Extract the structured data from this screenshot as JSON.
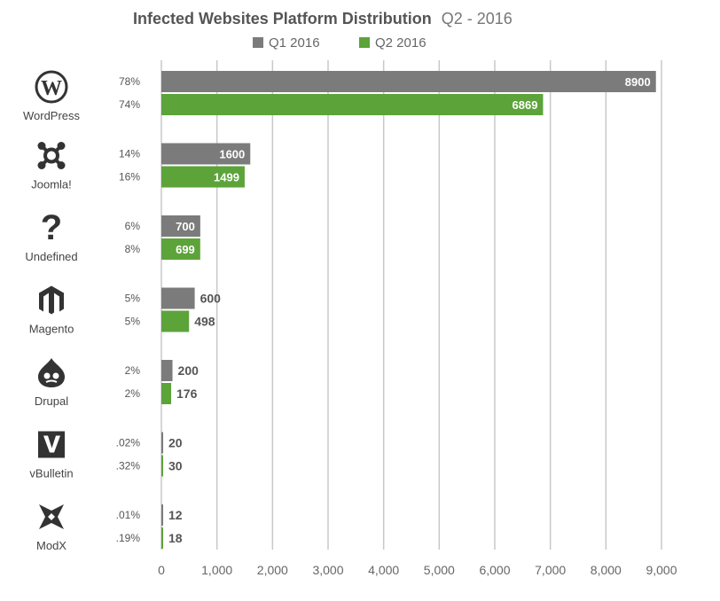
{
  "chart_data": {
    "type": "bar",
    "orientation": "horizontal",
    "title": "Infected Websites Platform Distribution",
    "subtitle": "Q2 - 2016",
    "categories": [
      "WordPress",
      "Joomla!",
      "Undefined",
      "Magento",
      "Drupal",
      "vBulletin",
      "ModX"
    ],
    "icons": [
      "wordpress-icon",
      "joomla-icon",
      "question-mark-icon",
      "magento-icon",
      "drupal-icon",
      "vbulletin-icon",
      "modx-icon"
    ],
    "series": [
      {
        "name": "Q1 2016",
        "color": "#7b7b7b",
        "values": [
          8900,
          1600,
          700,
          600,
          200,
          20,
          12
        ],
        "percent_labels": [
          "78%",
          "14%",
          "6%",
          "5%",
          "2%",
          ".02%",
          ".01%"
        ]
      },
      {
        "name": "Q2 2016",
        "color": "#5ca33a",
        "values": [
          6869,
          1499,
          699,
          498,
          176,
          30,
          18
        ],
        "percent_labels": [
          "74%",
          "16%",
          "8%",
          "5%",
          "2%",
          ".32%",
          ".19%"
        ]
      }
    ],
    "xlim": [
      0,
      9000
    ],
    "xticks": [
      "0",
      "1,000",
      "2,000",
      "3,000",
      "4,000",
      "5,000",
      "6,000",
      "7,000",
      "8,000",
      "9,000"
    ],
    "grid": true,
    "legend_position": "top"
  }
}
